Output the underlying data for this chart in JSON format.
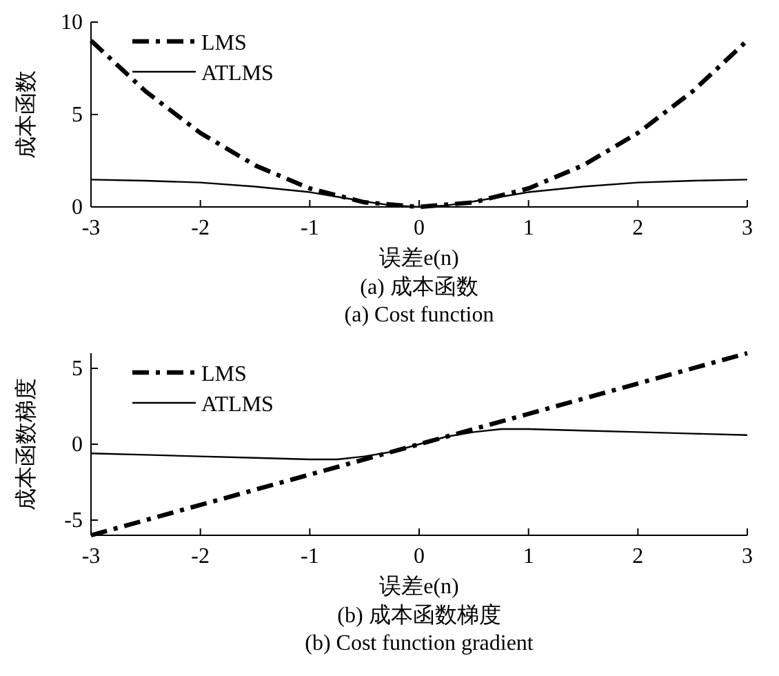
{
  "chart_data": [
    {
      "type": "line",
      "title": "(a) 成本函数",
      "subtitle": "(a) Cost function",
      "xlabel": "误差e(n)",
      "ylabel": "成本函数",
      "xlim": [
        -3,
        3
      ],
      "ylim": [
        0,
        10
      ],
      "xticks": [
        -3,
        -2,
        -1,
        0,
        1,
        2,
        3
      ],
      "yticks": [
        0,
        5,
        10
      ],
      "legend": "top left",
      "grid": false,
      "series": [
        {
          "name": "LMS",
          "color": "#000000",
          "line_style": "dashdot",
          "x": [
            -3,
            -2.5,
            -2,
            -1.5,
            -1,
            -0.5,
            0,
            0.5,
            1,
            1.5,
            2,
            2.5,
            3
          ],
          "values": [
            9,
            6.25,
            4,
            2.25,
            1,
            0.25,
            0,
            0.25,
            1,
            2.25,
            4,
            6.25,
            9
          ]
        },
        {
          "name": "ATLMS",
          "color": "#000000",
          "line_style": "solid",
          "x": [
            -3,
            -2.5,
            -2,
            -1.5,
            -1,
            -0.75,
            -0.5,
            -0.25,
            0,
            0.25,
            0.5,
            0.75,
            1,
            1.5,
            2,
            2.5,
            3
          ],
          "values": [
            1.48,
            1.42,
            1.32,
            1.1,
            0.8,
            0.55,
            0.3,
            0.08,
            0,
            0.08,
            0.3,
            0.55,
            0.8,
            1.1,
            1.32,
            1.42,
            1.48
          ]
        }
      ]
    },
    {
      "type": "line",
      "title": "(b) 成本函数梯度",
      "subtitle": "(b) Cost function gradient",
      "xlabel": "误差e(n)",
      "ylabel": "成本函数梯度",
      "xlim": [
        -3,
        3
      ],
      "ylim": [
        -6,
        6
      ],
      "xticks": [
        -3,
        -2,
        -1,
        0,
        1,
        2,
        3
      ],
      "yticks": [
        -5,
        0,
        5
      ],
      "legend": "top left",
      "grid": false,
      "series": [
        {
          "name": "LMS",
          "color": "#000000",
          "line_style": "dashdot",
          "x": [
            -3,
            0,
            3
          ],
          "values": [
            -6,
            0,
            6
          ]
        },
        {
          "name": "ATLMS",
          "color": "#000000",
          "line_style": "solid",
          "x": [
            -3,
            -2.5,
            -2,
            -1.5,
            -1,
            -0.75,
            -0.5,
            -0.25,
            0,
            0.25,
            0.5,
            0.75,
            1,
            1.5,
            2,
            2.5,
            3
          ],
          "values": [
            -0.6,
            -0.7,
            -0.8,
            -0.9,
            -1.0,
            -1.0,
            -0.8,
            -0.5,
            0,
            0.5,
            0.8,
            1.0,
            1.0,
            0.9,
            0.8,
            0.7,
            0.6
          ]
        }
      ]
    }
  ]
}
